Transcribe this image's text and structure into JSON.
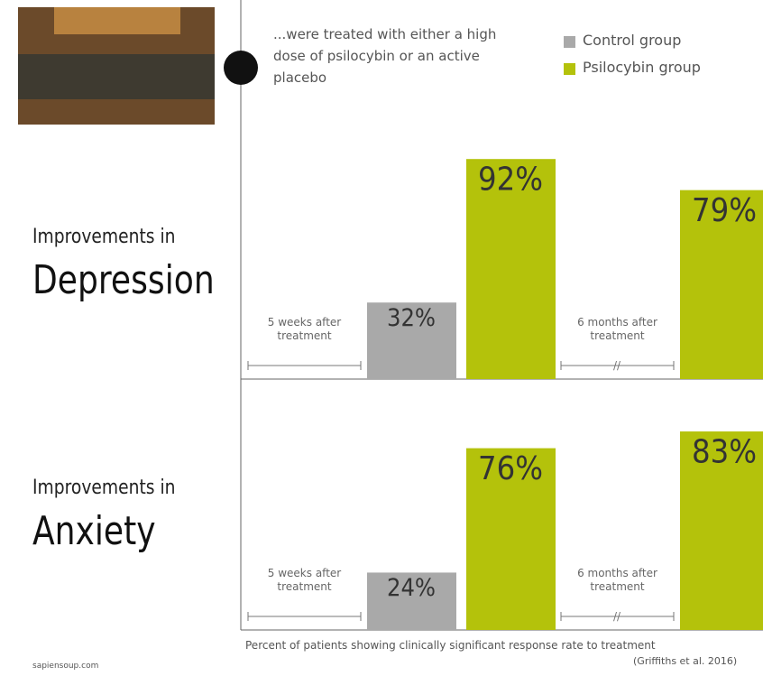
{
  "header": {
    "caption": "...were treated with either a high dose of psilocybin or an active placebo"
  },
  "chart_data": {
    "type": "bar",
    "series": [
      {
        "name": "Control group",
        "color": "#a9a9a9"
      },
      {
        "name": "Psilocybin group",
        "color": "#b4c20b"
      }
    ],
    "categories": [
      "5 weeks after treatment",
      "6 months after treatment"
    ],
    "panels": [
      {
        "title_prefix": "Improvements in",
        "title": "Depression",
        "values": [
          [
            32,
            null
          ],
          [
            92,
            79
          ]
        ],
        "value_labels": [
          [
            "32%",
            null
          ],
          [
            "92%",
            "79%"
          ]
        ]
      },
      {
        "title_prefix": "Improvements in",
        "title": "Anxiety",
        "values": [
          [
            24,
            null
          ],
          [
            76,
            83
          ]
        ],
        "value_labels": [
          [
            "24%",
            null
          ],
          [
            "76%",
            "83%"
          ]
        ]
      }
    ],
    "ylim": [
      0,
      100
    ],
    "x_label": "Percent of patients showing clinically significant response rate to treatment",
    "source": "(Griffiths et al. 2016)"
  },
  "footer": {
    "site": "sapiensoup.com"
  }
}
